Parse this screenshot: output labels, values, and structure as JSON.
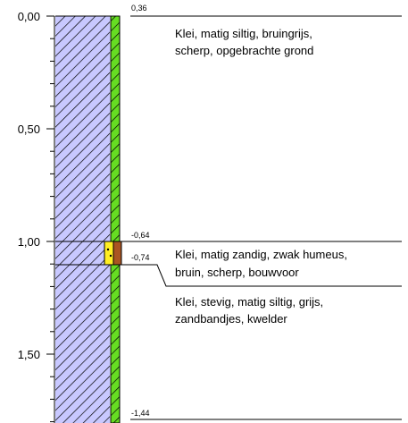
{
  "depth_axis": {
    "ticks": [
      {
        "label": "0,00",
        "depth": 0.0
      },
      {
        "label": "0,50",
        "depth": 0.5
      },
      {
        "label": "1,00",
        "depth": 1.0
      },
      {
        "label": "1,50",
        "depth": 1.5
      }
    ]
  },
  "levels": [
    {
      "label": "0,36",
      "depth": 0.0
    },
    {
      "label": "-0,64",
      "depth": 1.0
    },
    {
      "label": "-0,74",
      "depth": 1.1
    },
    {
      "label": "-1,44",
      "depth": 1.8
    }
  ],
  "layers": [
    {
      "from": 0.0,
      "to": 1.0,
      "pattern": "hatched-clay",
      "lines": [
        "Klei, matig siltig, bruingrijs,",
        "scherp, opgebrachte grond"
      ]
    },
    {
      "from": 1.0,
      "to": 1.1,
      "pattern": "hatched-clay",
      "lines": [
        "Klei, matig zandig, zwak humeus,",
        "bruin, scherp, bouwvoor"
      ]
    },
    {
      "from": 1.1,
      "to": 1.8,
      "pattern": "hatched-clay",
      "lines": [
        "Klei, stevig, matig siltig, grijs,",
        "zandbandjes, kwelder"
      ]
    }
  ],
  "colors": {
    "clay_fill": "#c8c8ff",
    "clay_hatch": "#000000",
    "green_strip": "#66dd22",
    "sand_band": "#ffee22",
    "humus_band": "#aa5522"
  }
}
